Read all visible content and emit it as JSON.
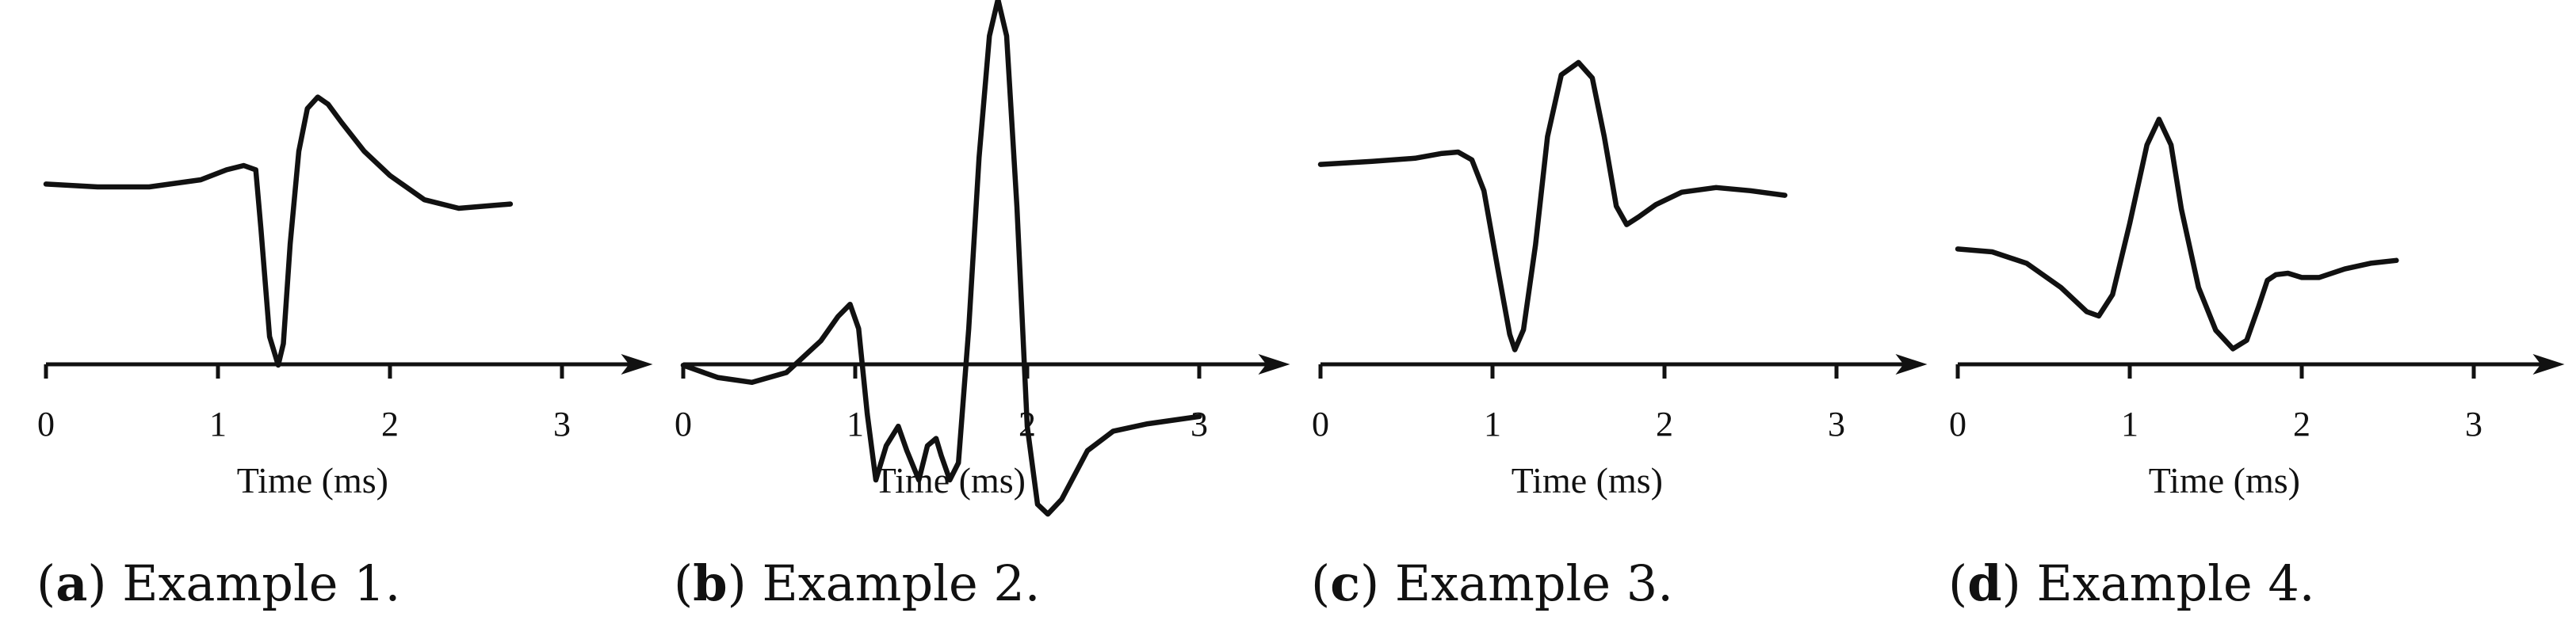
{
  "chart_data": [
    {
      "type": "line",
      "xlabel": "Time (ms)",
      "xticks": [
        "0",
        "1",
        "2",
        "3"
      ],
      "xlim": [
        0,
        3.5
      ],
      "caption": {
        "letter": "a",
        "text": "Example 1."
      },
      "series": [
        {
          "x": [
            0,
            0.3,
            0.6,
            0.9,
            1.05,
            1.15,
            1.22,
            1.25,
            1.3,
            1.35,
            1.38,
            1.42,
            1.47,
            1.52,
            1.58,
            1.64,
            1.72,
            1.85,
            2.0,
            2.2,
            2.4,
            2.6,
            2.7
          ],
          "y": [
            0.32,
            0.3,
            0.3,
            0.35,
            0.42,
            0.45,
            0.42,
            0.0,
            -0.75,
            -0.95,
            -0.8,
            -0.1,
            0.55,
            0.85,
            0.93,
            0.88,
            0.75,
            0.55,
            0.38,
            0.21,
            0.15,
            0.17,
            0.18
          ]
        }
      ]
    },
    {
      "type": "line",
      "xlabel": "Time (ms)",
      "xticks": [
        "0",
        "1",
        "2",
        "3"
      ],
      "xlim": [
        0,
        3.5
      ],
      "caption": {
        "letter": "b",
        "text": "Example 2."
      },
      "series": [
        {
          "x": [
            0,
            0.2,
            0.4,
            0.6,
            0.8,
            0.9,
            0.97,
            1.02,
            1.07,
            1.12,
            1.18,
            1.25,
            1.3,
            1.37,
            1.42,
            1.47,
            1.5,
            1.55,
            1.6,
            1.66,
            1.72,
            1.78,
            1.83,
            1.88,
            1.94,
            2.0,
            2.06,
            2.12,
            2.2,
            2.35,
            2.5,
            2.7,
            3.0
          ],
          "y": [
            -0.15,
            -0.2,
            -0.22,
            -0.18,
            -0.05,
            0.05,
            0.1,
            0.0,
            -0.35,
            -0.62,
            -0.48,
            -0.4,
            -0.5,
            -0.62,
            -0.48,
            -0.45,
            -0.52,
            -0.62,
            -0.55,
            0.0,
            0.7,
            1.2,
            1.35,
            1.2,
            0.5,
            -0.4,
            -0.72,
            -0.76,
            -0.7,
            -0.5,
            -0.42,
            -0.39,
            -0.36
          ]
        }
      ]
    },
    {
      "type": "line",
      "xlabel": "Time (ms)",
      "xticks": [
        "0",
        "1",
        "2",
        "3"
      ],
      "xlim": [
        0,
        3.5
      ],
      "caption": {
        "letter": "c",
        "text": "Example 3."
      },
      "series": [
        {
          "x": [
            0,
            0.3,
            0.55,
            0.7,
            0.8,
            0.88,
            0.95,
            1.03,
            1.1,
            1.13,
            1.18,
            1.25,
            1.32,
            1.4,
            1.5,
            1.58,
            1.65,
            1.72,
            1.78,
            1.85,
            1.95,
            2.1,
            2.3,
            2.5,
            2.7
          ],
          "y": [
            0.32,
            0.34,
            0.36,
            0.39,
            0.4,
            0.35,
            0.15,
            -0.35,
            -0.78,
            -0.88,
            -0.75,
            -0.2,
            0.5,
            0.9,
            0.98,
            0.88,
            0.5,
            0.05,
            -0.07,
            -0.02,
            0.06,
            0.14,
            0.17,
            0.15,
            0.12
          ]
        }
      ]
    },
    {
      "type": "line",
      "xlabel": "Time (ms)",
      "xticks": [
        "0",
        "1",
        "2",
        "3"
      ],
      "xlim": [
        0,
        3.5
      ],
      "caption": {
        "letter": "d",
        "text": "Example 4."
      },
      "series": [
        {
          "x": [
            0,
            0.2,
            0.4,
            0.6,
            0.75,
            0.82,
            0.9,
            1.0,
            1.1,
            1.17,
            1.24,
            1.3,
            1.4,
            1.5,
            1.6,
            1.68,
            1.75,
            1.8,
            1.85,
            1.92,
            2.0,
            2.1,
            2.25,
            2.4,
            2.55
          ],
          "y": [
            0.02,
            0.0,
            -0.08,
            -0.25,
            -0.42,
            -0.45,
            -0.3,
            0.2,
            0.75,
            0.93,
            0.75,
            0.3,
            -0.25,
            -0.55,
            -0.68,
            -0.62,
            -0.38,
            -0.2,
            -0.16,
            -0.15,
            -0.18,
            -0.18,
            -0.12,
            -0.08,
            -0.06
          ]
        }
      ]
    }
  ]
}
